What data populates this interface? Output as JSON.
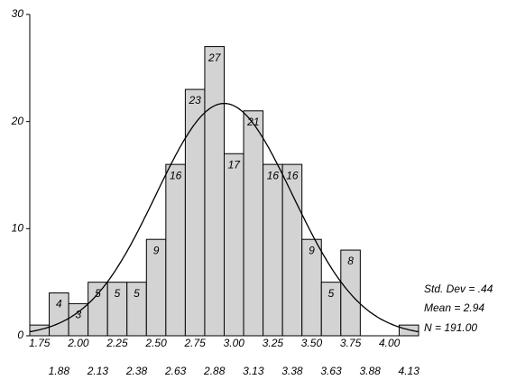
{
  "chart_data": {
    "type": "bar",
    "categories": [
      "1.75",
      "1.88",
      "2.00",
      "2.13",
      "2.25",
      "2.38",
      "2.50",
      "2.63",
      "2.75",
      "2.88",
      "3.00",
      "3.13",
      "3.25",
      "3.38",
      "3.50",
      "3.63",
      "3.75",
      "3.88",
      "4.00",
      "4.13"
    ],
    "values": [
      1,
      4,
      3,
      5,
      5,
      5,
      9,
      16,
      23,
      27,
      17,
      21,
      16,
      16,
      9,
      5,
      8,
      0,
      0,
      1
    ],
    "value_labels": [
      null,
      "4",
      "3",
      "5",
      "5",
      "5",
      "9",
      "16",
      "23",
      "27",
      "17",
      "21",
      "16",
      "16",
      "9",
      "5",
      "8",
      null,
      null,
      null
    ],
    "color": "#d3d3d3",
    "ylim": [
      0,
      30
    ],
    "yticks": [
      0,
      10,
      20,
      30
    ],
    "stats": [
      "Std. Dev = .44",
      "Mean = 2.94",
      "N = 191.00"
    ],
    "curve_color": "#000000"
  }
}
